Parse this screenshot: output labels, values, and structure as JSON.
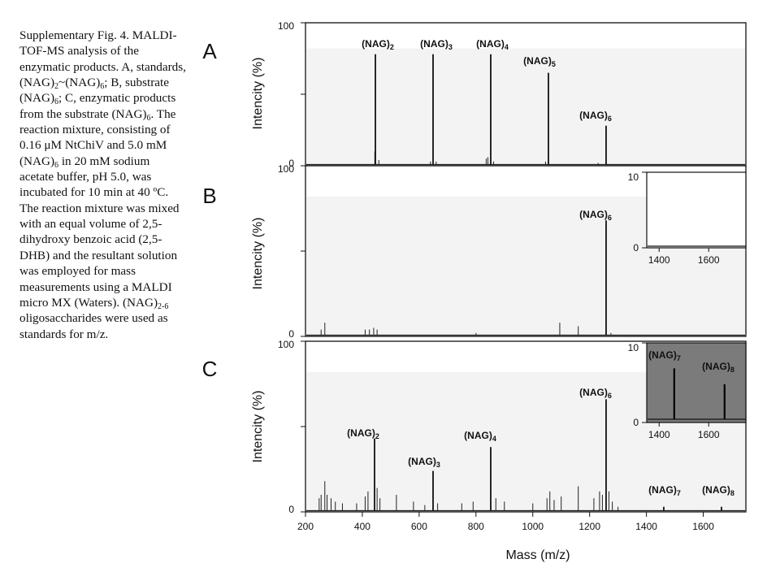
{
  "caption": {
    "parts": [
      {
        "t": "Supplementary Fig. 4. MALDI-TOF-MS analysis of the enzymatic products. A, standards, (NAG)"
      },
      {
        "s": "2"
      },
      {
        "t": "~(NAG)"
      },
      {
        "s": "6"
      },
      {
        "t": "; B, substrate (NAG)"
      },
      {
        "s": "6"
      },
      {
        "t": "; C, enzymatic products from the substrate (NAG)"
      },
      {
        "s": "6"
      },
      {
        "t": ". The reaction mixture, consisting of 0.16 μM NtChiV and 5.0 mM (NAG)"
      },
      {
        "s": "6"
      },
      {
        "t": " in 20 mM sodium acetate buffer, pH 5.0, was incubated for 10 min at 40 ºC. The reaction mixture was mixed with an equal volume of 2,5-dihydroxy benzoic acid (2,5-DHB) and the resultant solution was employed for mass measurements using a MALDI micro MX (Waters). (NAG)"
      },
      {
        "s": "2-6"
      },
      {
        "t": " oligosaccharides were used as standards for m/z."
      }
    ]
  },
  "chart_data": [
    {
      "type": "line",
      "panel": "A",
      "ylabel": "Intencity (%)",
      "ylim": [
        0,
        100
      ],
      "yticks": [
        "0",
        "100"
      ],
      "peaks": [
        {
          "x": 446,
          "y": 78,
          "label": "(NAG)",
          "sub": "2"
        },
        {
          "x": 649,
          "y": 78,
          "label": "(NAG)",
          "sub": "3"
        },
        {
          "x": 852,
          "y": 78,
          "label": "(NAG)",
          "sub": "4"
        },
        {
          "x": 1055,
          "y": 65,
          "label": "(NAG)",
          "sub": "5"
        },
        {
          "x": 1258,
          "y": 28,
          "label": "(NAG)",
          "sub": "6"
        }
      ],
      "minor_peaks": [
        [
          444,
          10
        ],
        [
          458,
          4
        ],
        [
          640,
          3
        ],
        [
          660,
          3
        ],
        [
          836,
          5
        ],
        [
          842,
          6
        ],
        [
          862,
          3
        ],
        [
          1045,
          3
        ],
        [
          1230,
          2
        ]
      ]
    },
    {
      "type": "line",
      "panel": "B",
      "ylabel": "Intencity (%)",
      "ylim": [
        0,
        100
      ],
      "yticks": [
        "0",
        "100"
      ],
      "peaks": [
        {
          "x": 1258,
          "y": 68,
          "label": "(NAG)",
          "sub": "6"
        }
      ],
      "minor_peaks": [
        [
          268,
          8
        ],
        [
          255,
          4
        ],
        [
          410,
          4
        ],
        [
          425,
          4
        ],
        [
          440,
          5
        ],
        [
          452,
          4
        ],
        [
          800,
          2
        ],
        [
          1095,
          8
        ],
        [
          1160,
          6
        ],
        [
          1275,
          2
        ]
      ],
      "inset": {
        "xlim": [
          1350,
          1750
        ],
        "ylim": [
          0,
          10
        ],
        "xticks": [
          "1400",
          "1600"
        ],
        "yticks": [
          "0",
          "10"
        ],
        "dark": false
      }
    },
    {
      "type": "line",
      "panel": "C",
      "ylabel": "Intencity (%)",
      "xlabel": "Mass (m/z)",
      "xlim": [
        200,
        1750
      ],
      "xticks": [
        "200",
        "400",
        "600",
        "800",
        "1000",
        "1200",
        "1400",
        "1600"
      ],
      "ylim": [
        0,
        100
      ],
      "yticks": [
        "0",
        "100"
      ],
      "peaks": [
        {
          "x": 443,
          "y": 43,
          "label": "(NAG)",
          "sub": "2"
        },
        {
          "x": 649,
          "y": 24,
          "label": "(NAG)",
          "sub": "3"
        },
        {
          "x": 852,
          "y": 38,
          "label": "(NAG)",
          "sub": "4"
        },
        {
          "x": 1258,
          "y": 66,
          "label": "(NAG)",
          "sub": "6"
        },
        {
          "x": 1461,
          "y": 3,
          "label": "(NAG)",
          "sub": "7"
        },
        {
          "x": 1664,
          "y": 3,
          "label": "(NAG)",
          "sub": "8"
        }
      ],
      "minor_peaks": [
        [
          248,
          8
        ],
        [
          255,
          10
        ],
        [
          268,
          18
        ],
        [
          276,
          10
        ],
        [
          290,
          8
        ],
        [
          305,
          6
        ],
        [
          330,
          5
        ],
        [
          380,
          5
        ],
        [
          410,
          9
        ],
        [
          420,
          12
        ],
        [
          452,
          14
        ],
        [
          462,
          8
        ],
        [
          520,
          10
        ],
        [
          580,
          6
        ],
        [
          620,
          4
        ],
        [
          665,
          5
        ],
        [
          750,
          5
        ],
        [
          790,
          6
        ],
        [
          870,
          8
        ],
        [
          900,
          6
        ],
        [
          1000,
          5
        ],
        [
          1050,
          8
        ],
        [
          1060,
          12
        ],
        [
          1075,
          7
        ],
        [
          1100,
          9
        ],
        [
          1160,
          15
        ],
        [
          1215,
          8
        ],
        [
          1235,
          12
        ],
        [
          1245,
          10
        ],
        [
          1268,
          12
        ],
        [
          1280,
          6
        ],
        [
          1300,
          3
        ]
      ],
      "inset": {
        "xlim": [
          1350,
          1750
        ],
        "ylim": [
          0,
          10
        ],
        "xticks": [
          "1400",
          "1600"
        ],
        "yticks": [
          "0",
          "10"
        ],
        "dark": true,
        "peaks": [
          {
            "x": 1461,
            "y": 6.8,
            "label": "(NAG)",
            "sub": "7"
          },
          {
            "x": 1664,
            "y": 4.8,
            "label": "(NAG)",
            "sub": "8"
          }
        ]
      }
    }
  ]
}
